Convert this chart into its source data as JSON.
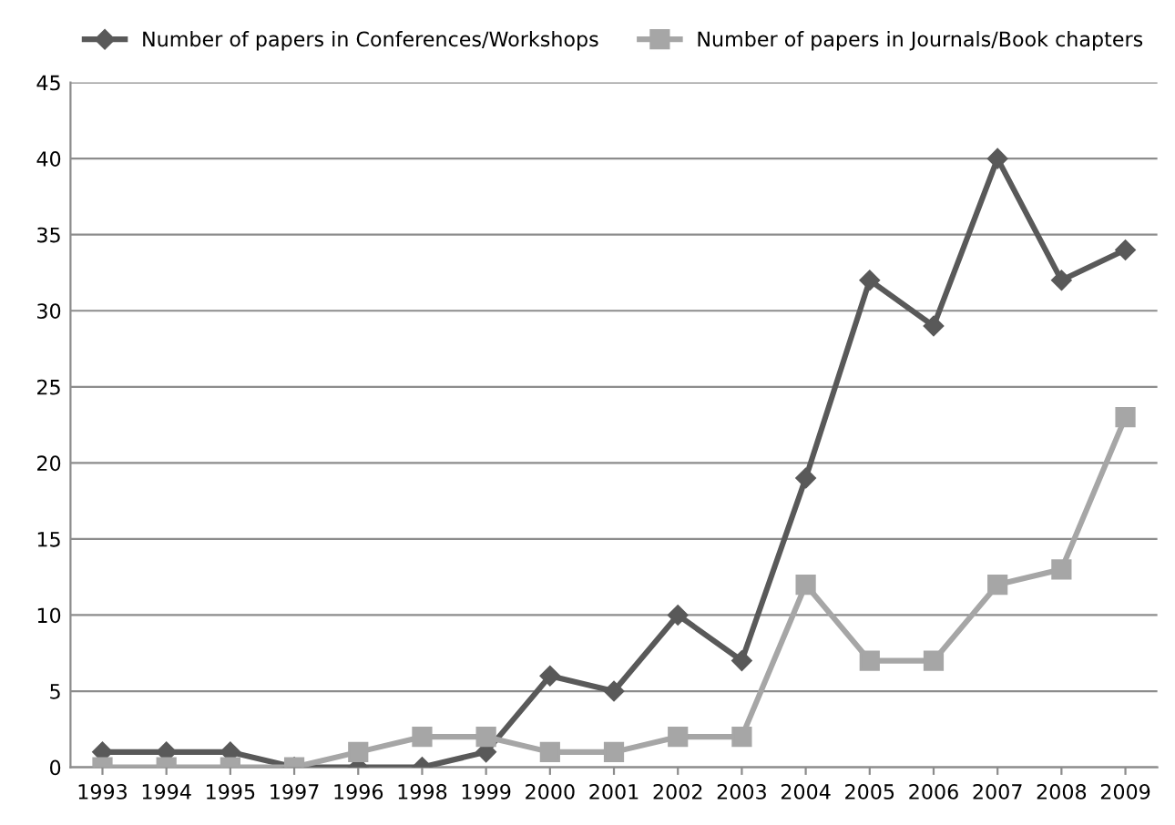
{
  "chart_data": {
    "type": "line",
    "categories": [
      "1993",
      "1994",
      "1995",
      "1997",
      "1996",
      "1998",
      "1999",
      "2000",
      "2001",
      "2002",
      "2003",
      "2004",
      "2005",
      "2006",
      "2007",
      "2008",
      "2009"
    ],
    "series": [
      {
        "name": "Number of papers in Conferences/Workshops",
        "color": "#595959",
        "marker": "diamond",
        "values": [
          1,
          1,
          1,
          0,
          0,
          0,
          1,
          6,
          5,
          10,
          7,
          19,
          32,
          29,
          40,
          32,
          34
        ]
      },
      {
        "name": "Number of papers in Journals/Book chapters",
        "color": "#a6a6a6",
        "marker": "square",
        "values": [
          0,
          0,
          0,
          0,
          1,
          2,
          2,
          1,
          1,
          2,
          2,
          12,
          7,
          7,
          12,
          13,
          23
        ]
      }
    ],
    "ylim": [
      0,
      45
    ],
    "yticks": [
      0,
      5,
      10,
      15,
      20,
      25,
      30,
      35,
      40,
      45
    ],
    "grid": "y",
    "legend": "top",
    "line_style": "solid"
  }
}
